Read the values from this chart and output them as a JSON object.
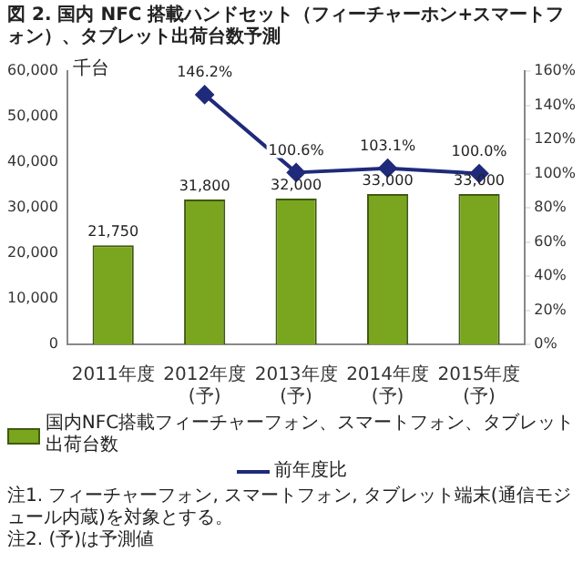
{
  "chart_data": {
    "type": "bar",
    "title": "図 2. 国内 NFC 搭載ハンドセット（フィーチャーホン+スマートフォン）、タブレット出荷台数予測",
    "ylabel": "千台",
    "categories": [
      "2011年度",
      "2012年度(予)",
      "2013年度(予)",
      "2014年度(予)",
      "2015年度(予)"
    ],
    "series": [
      {
        "name": "国内NFC搭載フィーチャーフォン、スマートフォン、タブレット出荷台数",
        "color": "#7aa51e",
        "values": [
          21750,
          31800,
          32000,
          33000,
          33000
        ],
        "value_labels": [
          "21,750",
          "31,800",
          "32,000",
          "33,000",
          "33,000"
        ]
      },
      {
        "name": "前年度比",
        "type": "line",
        "axis": "y2",
        "color": "#1f2a7a",
        "marker": "diamond",
        "values": [
          null,
          146.2,
          100.6,
          103.1,
          100.0
        ],
        "value_labels": [
          null,
          "146.2%",
          "100.6%",
          "103.1%",
          "100.0%"
        ]
      }
    ],
    "ylim": [
      0,
      60000
    ],
    "yticks": [
      {
        "value": 0,
        "label": "0"
      },
      {
        "value": 10000,
        "label": "10,000"
      },
      {
        "value": 20000,
        "label": "20,000"
      },
      {
        "value": 30000,
        "label": "30,000"
      },
      {
        "value": 40000,
        "label": "40,000"
      },
      {
        "value": 50000,
        "label": "50,000"
      },
      {
        "value": 60000,
        "label": "60,000"
      }
    ],
    "y2lim": [
      0,
      160
    ],
    "y2ticks": [
      {
        "value": 0,
        "label": "0%"
      },
      {
        "value": 20,
        "label": "20%"
      },
      {
        "value": 40,
        "label": "40%"
      },
      {
        "value": 60,
        "label": "60%"
      },
      {
        "value": 80,
        "label": "80%"
      },
      {
        "value": 100,
        "label": "100%"
      },
      {
        "value": 120,
        "label": "120%"
      },
      {
        "value": 140,
        "label": "140%"
      },
      {
        "value": 160,
        "label": "160%"
      }
    ],
    "grid": false,
    "legend": "bottom",
    "annotations": [
      "注1. フィーチャーフォン, スマートフォン, タブレット端末(通信モジュール内蔵)を対象とする。",
      "注2. (予)は予測値"
    ]
  }
}
